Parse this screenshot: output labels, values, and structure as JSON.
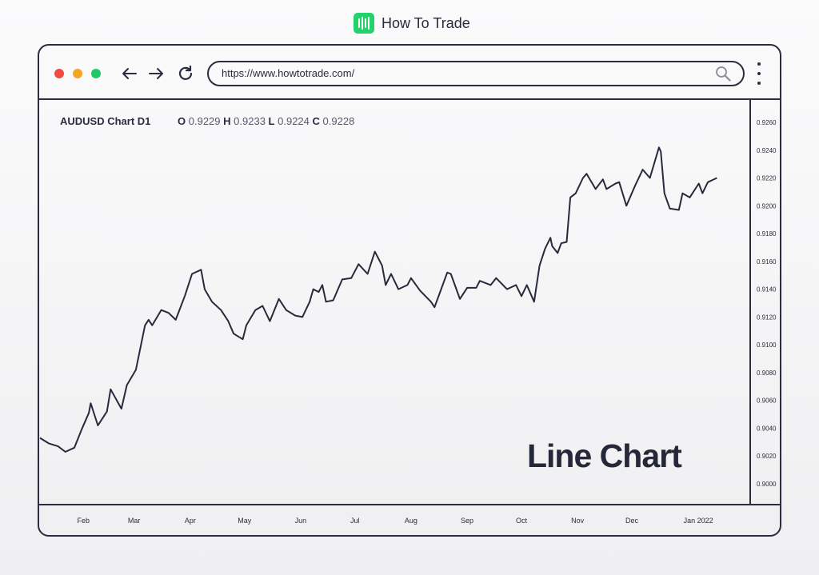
{
  "brand": {
    "name": "How To Trade",
    "logo_color": "#22d36b"
  },
  "browser": {
    "url": "https://www.howtotrade.com/",
    "traffic_lights": [
      "#f04a45",
      "#f5a623",
      "#22c76a"
    ],
    "icons": [
      "arrow-left-icon",
      "arrow-right-icon",
      "reload-icon",
      "search-icon",
      "kebab-menu-icon"
    ]
  },
  "header": {
    "title": "AUDUSD Chart D1",
    "ohlc": [
      {
        "key": "O",
        "value": "0.9229"
      },
      {
        "key": "H",
        "value": "0.9233"
      },
      {
        "key": "L",
        "value": "0.9224"
      },
      {
        "key": "C",
        "value": "0.9228"
      }
    ]
  },
  "overlay_label": "Line Chart",
  "chart_data": {
    "type": "line",
    "title": "AUDUSD Chart D1",
    "line_color": "#262a3b",
    "grid": false,
    "y_axis_position": "right",
    "ylim": [
      0.8988,
      0.928
    ],
    "yticks": [
      "0.9260",
      "0.9240",
      "0.9220",
      "0.9200",
      "0.9180",
      "0.9160",
      "0.9140",
      "0.9120",
      "0.9100",
      "0.9080",
      "0.9060",
      "0.9040",
      "0.9020",
      "0.9000"
    ],
    "xticks": [
      "Feb",
      "Mar",
      "Apr",
      "May",
      "Jun",
      "Jul",
      "Aug",
      "Sep",
      "Oct",
      "Nov",
      "Dec",
      "Jan 2022"
    ],
    "xlim": [
      "2021-01-08",
      "2022-01-30"
    ],
    "series": [
      {
        "x": [
          "2021-01-08",
          "2021-01-13",
          "2021-01-18",
          "2021-01-22",
          "2021-01-27",
          "2021-01-31",
          "2021-02-04",
          "2021-02-05",
          "2021-02-09",
          "2021-02-14",
          "2021-02-16",
          "2021-02-22",
          "2021-02-25",
          "2021-03-02",
          "2021-03-07",
          "2021-03-09",
          "2021-03-11",
          "2021-03-16",
          "2021-03-20",
          "2021-03-24",
          "2021-03-29",
          "2021-04-02",
          "2021-04-07",
          "2021-04-09",
          "2021-04-13",
          "2021-04-18",
          "2021-04-22",
          "2021-04-25",
          "2021-04-30",
          "2021-05-02",
          "2021-05-07",
          "2021-05-11",
          "2021-05-15",
          "2021-05-20",
          "2021-05-24",
          "2021-05-29",
          "2021-06-02",
          "2021-06-06",
          "2021-06-08",
          "2021-06-11",
          "2021-06-13",
          "2021-06-15",
          "2021-06-19",
          "2021-06-24",
          "2021-06-29",
          "2021-07-03",
          "2021-07-08",
          "2021-07-12",
          "2021-07-16",
          "2021-07-18",
          "2021-07-21",
          "2021-07-25",
          "2021-07-30",
          "2021-08-01",
          "2021-08-06",
          "2021-08-12",
          "2021-08-14",
          "2021-08-21",
          "2021-08-23",
          "2021-08-28",
          "2021-09-01",
          "2021-09-06",
          "2021-09-08",
          "2021-09-14",
          "2021-09-17",
          "2021-09-23",
          "2021-09-28",
          "2021-10-01",
          "2021-10-04",
          "2021-10-08",
          "2021-10-11",
          "2021-10-14",
          "2021-10-17",
          "2021-10-18",
          "2021-10-21",
          "2021-10-23",
          "2021-10-26",
          "2021-10-28",
          "2021-10-31",
          "2021-11-04",
          "2021-11-06",
          "2021-11-11",
          "2021-11-15",
          "2021-11-17",
          "2021-11-22",
          "2021-11-24",
          "2021-11-28",
          "2021-12-03",
          "2021-12-07",
          "2021-12-11",
          "2021-12-16",
          "2021-12-17",
          "2021-12-19",
          "2021-12-22",
          "2021-12-27",
          "2021-12-29",
          "2022-01-02",
          "2022-01-07",
          "2022-01-09",
          "2022-01-12",
          "2022-01-17"
        ],
        "y": [
          0.9033,
          0.9029,
          0.9027,
          0.9023,
          0.9026,
          0.9039,
          0.9051,
          0.9058,
          0.9042,
          0.9052,
          0.9068,
          0.9054,
          0.9071,
          0.9082,
          0.9114,
          0.9118,
          0.9114,
          0.9125,
          0.9123,
          0.9118,
          0.9135,
          0.9151,
          0.9154,
          0.914,
          0.9131,
          0.9125,
          0.9117,
          0.9108,
          0.9104,
          0.9114,
          0.9125,
          0.9128,
          0.9117,
          0.9133,
          0.9125,
          0.9121,
          0.912,
          0.9131,
          0.914,
          0.9138,
          0.9143,
          0.9131,
          0.9132,
          0.9147,
          0.9148,
          0.9158,
          0.9151,
          0.9167,
          0.9157,
          0.9143,
          0.9151,
          0.914,
          0.9143,
          0.9148,
          0.9139,
          0.9131,
          0.9127,
          0.9152,
          0.9151,
          0.9133,
          0.9141,
          0.9141,
          0.9146,
          0.9143,
          0.9148,
          0.914,
          0.9143,
          0.9135,
          0.9143,
          0.9131,
          0.9157,
          0.9169,
          0.9177,
          0.9171,
          0.9166,
          0.9173,
          0.9174,
          0.9206,
          0.9209,
          0.922,
          0.9223,
          0.9212,
          0.9219,
          0.9212,
          0.9216,
          0.9217,
          0.92,
          0.9215,
          0.9226,
          0.922,
          0.9242,
          0.9239,
          0.9209,
          0.9198,
          0.9197,
          0.9209,
          0.9206,
          0.9216,
          0.9209,
          0.9217,
          0.922
        ]
      }
    ]
  }
}
